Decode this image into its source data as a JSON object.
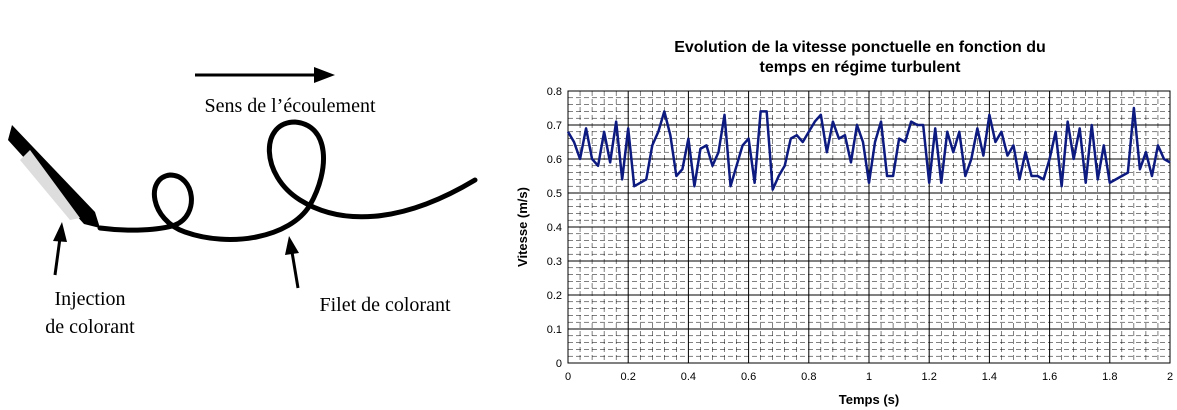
{
  "diagram": {
    "flow_label": "Sens de l’écoulement",
    "injection_label": [
      "Injection",
      "de colorant"
    ],
    "filament_label": "Filet de colorant"
  },
  "chart_data": {
    "type": "line",
    "title": [
      "Evolution de la vitesse ponctuelle en fonction du",
      "temps en régime turbulent"
    ],
    "x_label": "Temps (s)",
    "y_label": "Vitesse (m/s)",
    "x": [
      0,
      0.02,
      0.04,
      0.06,
      0.08,
      0.1,
      0.12,
      0.14,
      0.16,
      0.18,
      0.2,
      0.22,
      0.24,
      0.26,
      0.28,
      0.3,
      0.32,
      0.34,
      0.36,
      0.38,
      0.4,
      0.42,
      0.44,
      0.46,
      0.48,
      0.5,
      0.52,
      0.54,
      0.56,
      0.58,
      0.6,
      0.62,
      0.64,
      0.66,
      0.68,
      0.7,
      0.72,
      0.74,
      0.76,
      0.78,
      0.8,
      0.82,
      0.84,
      0.86,
      0.88,
      0.9,
      0.92,
      0.94,
      0.96,
      0.98,
      1,
      1.02,
      1.04,
      1.06,
      1.08,
      1.1,
      1.12,
      1.14,
      1.16,
      1.18,
      1.2,
      1.22,
      1.24,
      1.26,
      1.28,
      1.3,
      1.32,
      1.34,
      1.36,
      1.38,
      1.4,
      1.42,
      1.44,
      1.46,
      1.48,
      1.5,
      1.52,
      1.54,
      1.56,
      1.58,
      1.6,
      1.62,
      1.64,
      1.66,
      1.68,
      1.7,
      1.72,
      1.74,
      1.76,
      1.78,
      1.8,
      1.82,
      1.84,
      1.86,
      1.88,
      1.9,
      1.92,
      1.94,
      1.96,
      1.98,
      2
    ],
    "series": [
      {
        "color": "#0d1a80",
        "values": [
          0.68,
          0.65,
          0.6,
          0.69,
          0.6,
          0.58,
          0.68,
          0.59,
          0.71,
          0.54,
          0.69,
          0.52,
          0.53,
          0.54,
          0.64,
          0.68,
          0.74,
          0.67,
          0.55,
          0.57,
          0.66,
          0.52,
          0.63,
          0.64,
          0.58,
          0.62,
          0.73,
          0.52,
          0.58,
          0.64,
          0.66,
          0.53,
          0.74,
          0.74,
          0.51,
          0.55,
          0.58,
          0.66,
          0.67,
          0.65,
          0.68,
          0.71,
          0.73,
          0.62,
          0.71,
          0.66,
          0.67,
          0.59,
          0.7,
          0.65,
          0.53,
          0.65,
          0.71,
          0.55,
          0.55,
          0.66,
          0.65,
          0.71,
          0.7,
          0.7,
          0.53,
          0.69,
          0.53,
          0.68,
          0.62,
          0.68,
          0.55,
          0.6,
          0.69,
          0.61,
          0.73,
          0.65,
          0.68,
          0.61,
          0.64,
          0.54,
          0.62,
          0.55,
          0.55,
          0.54,
          0.6,
          0.68,
          0.52,
          0.71,
          0.6,
          0.69,
          0.53,
          0.7,
          0.54,
          0.64,
          0.53,
          0.54,
          0.55,
          0.56,
          0.75,
          0.57,
          0.62,
          0.55,
          0.64,
          0.6,
          0.59
        ]
      }
    ],
    "xlim": [
      0,
      2
    ],
    "xticks": [
      0,
      0.2,
      0.4,
      0.6,
      0.8,
      1,
      1.2,
      1.4,
      1.6,
      1.8,
      2
    ],
    "ylim": [
      0,
      0.8
    ],
    "yticks": [
      0,
      0.1,
      0.2,
      0.3,
      0.4,
      0.5,
      0.6,
      0.7,
      0.8
    ],
    "grid": true
  }
}
